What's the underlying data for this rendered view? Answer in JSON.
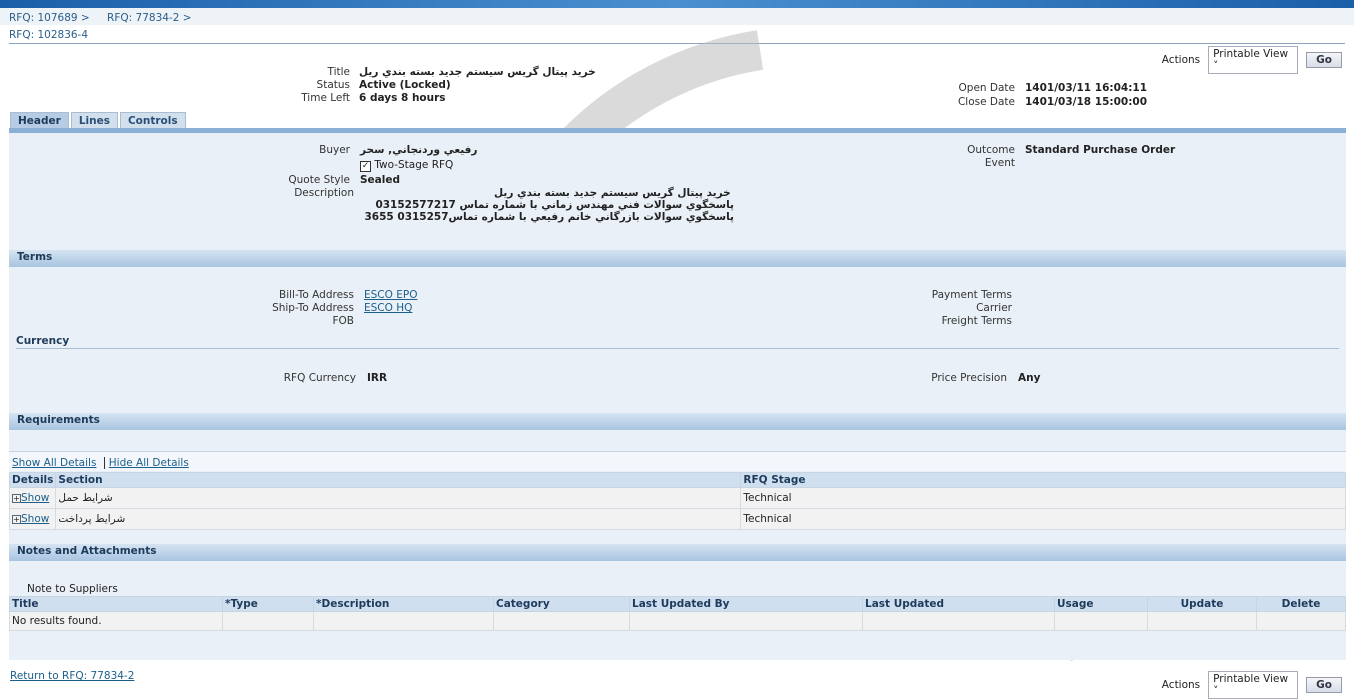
{
  "breadcrumbs": [
    "RFQ: 107689",
    "RFQ: 77834-2"
  ],
  "page_title": "RFQ: 102836-4",
  "actions": {
    "label": "Actions",
    "select_value": "Printable View",
    "go": "Go"
  },
  "summary": {
    "title_label": "Title",
    "title": "خريد پيتال گريس سيستم جديد بسته بندي ريل",
    "status_label": "Status",
    "status": "Active (Locked)",
    "time_left_label": "Time Left",
    "time_left": "6 days 8 hours",
    "open_date_label": "Open Date",
    "open_date": "1401/03/11 16:04:11",
    "close_date_label": "Close Date",
    "close_date": "1401/03/18 15:00:00"
  },
  "tabs": [
    "Header",
    "Lines",
    "Controls"
  ],
  "header": {
    "buyer_label": "Buyer",
    "buyer": "رفيعي وردنجاني, سحر",
    "two_stage": "Two-Stage RFQ",
    "two_stage_checked": true,
    "quote_style_label": "Quote Style",
    "quote_style": "Sealed",
    "description_label": "Description",
    "description": [
      "خريد پيتال گريس سيستم جديد بسته بندي ريل",
      "پاسخگوي سوالات فني مهندس زماني با شماره تماس 03152577217",
      "پاسخگوي سوالات بازرگاني خانم رفيعي با شماره تماس0315257 3655"
    ],
    "outcome_label": "Outcome",
    "outcome": "Standard Purchase Order",
    "event_label": "Event"
  },
  "terms": {
    "heading": "Terms",
    "bill_to_label": "Bill-To Address",
    "bill_to": "ESCO EPO",
    "ship_to_label": "Ship-To Address",
    "ship_to": "ESCO HQ",
    "fob_label": "FOB",
    "payment_terms_label": "Payment Terms",
    "carrier_label": "Carrier",
    "freight_terms_label": "Freight Terms"
  },
  "currency": {
    "heading": "Currency",
    "rfq_currency_label": "RFQ Currency",
    "rfq_currency": "IRR",
    "price_precision_label": "Price Precision",
    "price_precision": "Any"
  },
  "requirements": {
    "heading": "Requirements",
    "show_all": "Show All Details",
    "hide_all": "Hide All Details",
    "columns": [
      "Details",
      "Section",
      "RFQ Stage"
    ],
    "rows": [
      {
        "show": "Show",
        "section": "شرايط حمل",
        "stage": "Technical"
      },
      {
        "show": "Show",
        "section": "شرايط پرداخت",
        "stage": "Technical"
      }
    ]
  },
  "notes": {
    "heading": "Notes and Attachments",
    "note_label": "Note to Suppliers",
    "columns": [
      "Title",
      "*Type",
      "*Description",
      "Category",
      "Last Updated By",
      "Last Updated",
      "Usage",
      "Update",
      "Delete"
    ],
    "empty": "No results found."
  },
  "footer": {
    "return_link": "Return to RFQ: 77834-2"
  }
}
